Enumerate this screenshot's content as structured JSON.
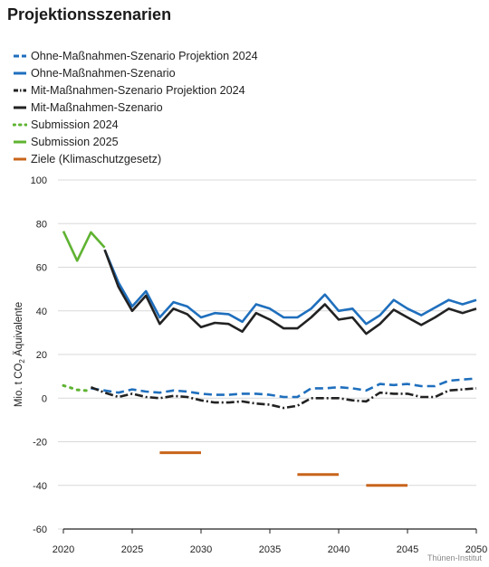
{
  "title": "Projektionsszenarien",
  "source": "Thünen-Institut",
  "chart_data": {
    "type": "line",
    "title": "Projektionsszenarien",
    "ylabel_main": "Mio. t CO",
    "ylabel_sub": "2",
    "ylabel_tail": " Äquivalente",
    "ylim": [
      -60,
      100
    ],
    "xlim": [
      2020,
      2050
    ],
    "yticks": [
      "100",
      "80",
      "60",
      "40",
      "20",
      "0",
      "-20",
      "-40",
      "-60"
    ],
    "ytick_values": [
      100,
      80,
      60,
      40,
      20,
      0,
      -20,
      -40,
      -60
    ],
    "xticks": [
      "2020",
      "2025",
      "2030",
      "2035",
      "2040",
      "2045",
      "2050"
    ],
    "xtick_values": [
      2020,
      2025,
      2030,
      2035,
      2040,
      2045,
      2050
    ],
    "grid": "horizontal",
    "legend_position": "top",
    "series": [
      {
        "name": "Ohne-Maßnahmen-Szenario Projektion 2024",
        "color": "#1f6fbd",
        "style": "dashed",
        "x": [
          2022,
          2023,
          2024,
          2025,
          2026,
          2027,
          2028,
          2029,
          2030,
          2031,
          2032,
          2033,
          2034,
          2035,
          2036,
          2037,
          2038,
          2039,
          2040,
          2041,
          2042,
          2043,
          2044,
          2045,
          2046,
          2047,
          2048,
          2049,
          2050
        ],
        "values": [
          4.5,
          3.5,
          2.5,
          4,
          3,
          2.5,
          3.5,
          3,
          2,
          1.5,
          1.5,
          2,
          2,
          1.5,
          0.5,
          0.5,
          4.5,
          4.5,
          5,
          4.5,
          3.5,
          6.5,
          6,
          6.5,
          5.5,
          5.5,
          8,
          8.5,
          9
        ]
      },
      {
        "name": "Ohne-Maßnahmen-Szenario",
        "color": "#1f6fbd",
        "style": "solid",
        "x": [
          2023,
          2024,
          2025,
          2026,
          2027,
          2028,
          2029,
          2030,
          2031,
          2032,
          2033,
          2034,
          2035,
          2036,
          2037,
          2038,
          2039,
          2040,
          2041,
          2042,
          2043,
          2044,
          2045,
          2046,
          2047,
          2048,
          2049,
          2050
        ],
        "values": [
          68,
          53,
          42,
          49,
          37,
          44,
          42,
          37,
          39,
          38.5,
          35,
          43,
          41,
          37,
          37,
          41,
          47.5,
          40,
          41,
          34,
          38,
          45,
          41,
          38,
          41.5,
          45,
          43,
          45
        ]
      },
      {
        "name": "Mit-Maßnahmen-Szenario Projektion 2024",
        "color": "#222222",
        "style": "dashdot",
        "x": [
          2022,
          2023,
          2024,
          2025,
          2026,
          2027,
          2028,
          2029,
          2030,
          2031,
          2032,
          2033,
          2034,
          2035,
          2036,
          2037,
          2038,
          2039,
          2040,
          2041,
          2042,
          2043,
          2044,
          2045,
          2046,
          2047,
          2048,
          2049,
          2050
        ],
        "values": [
          5,
          2.5,
          0.5,
          2,
          0.5,
          0,
          1,
          0.5,
          -1,
          -2,
          -2,
          -1.5,
          -2.5,
          -3,
          -4.5,
          -3.5,
          0,
          0,
          0,
          -1,
          -1.5,
          2.5,
          2,
          2,
          0.5,
          0.5,
          3.5,
          4,
          4.5
        ]
      },
      {
        "name": "Mit-Maßnahmen-Szenario",
        "color": "#222222",
        "style": "solid",
        "x": [
          2023,
          2024,
          2025,
          2026,
          2027,
          2028,
          2029,
          2030,
          2031,
          2032,
          2033,
          2034,
          2035,
          2036,
          2037,
          2038,
          2039,
          2040,
          2041,
          2042,
          2043,
          2044,
          2045,
          2046,
          2047,
          2048,
          2049,
          2050
        ],
        "values": [
          68,
          51,
          40,
          47,
          34,
          41,
          38.5,
          32.5,
          34.5,
          34,
          30.5,
          39,
          36,
          32,
          32,
          37,
          43,
          36,
          37,
          29.5,
          34,
          40.5,
          37,
          33.5,
          37,
          41,
          39,
          41
        ]
      },
      {
        "name": "Submission 2024",
        "color": "#5fb332",
        "style": "dotted",
        "x": [
          2020,
          2021,
          2022
        ],
        "values": [
          5.8,
          3.8,
          3.3
        ]
      },
      {
        "name": "Submission 2025",
        "color": "#5fb332",
        "style": "solid",
        "x": [
          2020,
          2021,
          2022,
          2023
        ],
        "values": [
          76.5,
          63,
          76,
          69
        ]
      },
      {
        "name": "Ziele (Klimaschutzgesetz)",
        "color": "#c8641a",
        "style": "segments",
        "segments": [
          {
            "x": [
              2027,
              2030
            ],
            "value": -25
          },
          {
            "x": [
              2037,
              2040
            ],
            "value": -35
          },
          {
            "x": [
              2042,
              2045
            ],
            "value": -40
          }
        ]
      }
    ]
  }
}
